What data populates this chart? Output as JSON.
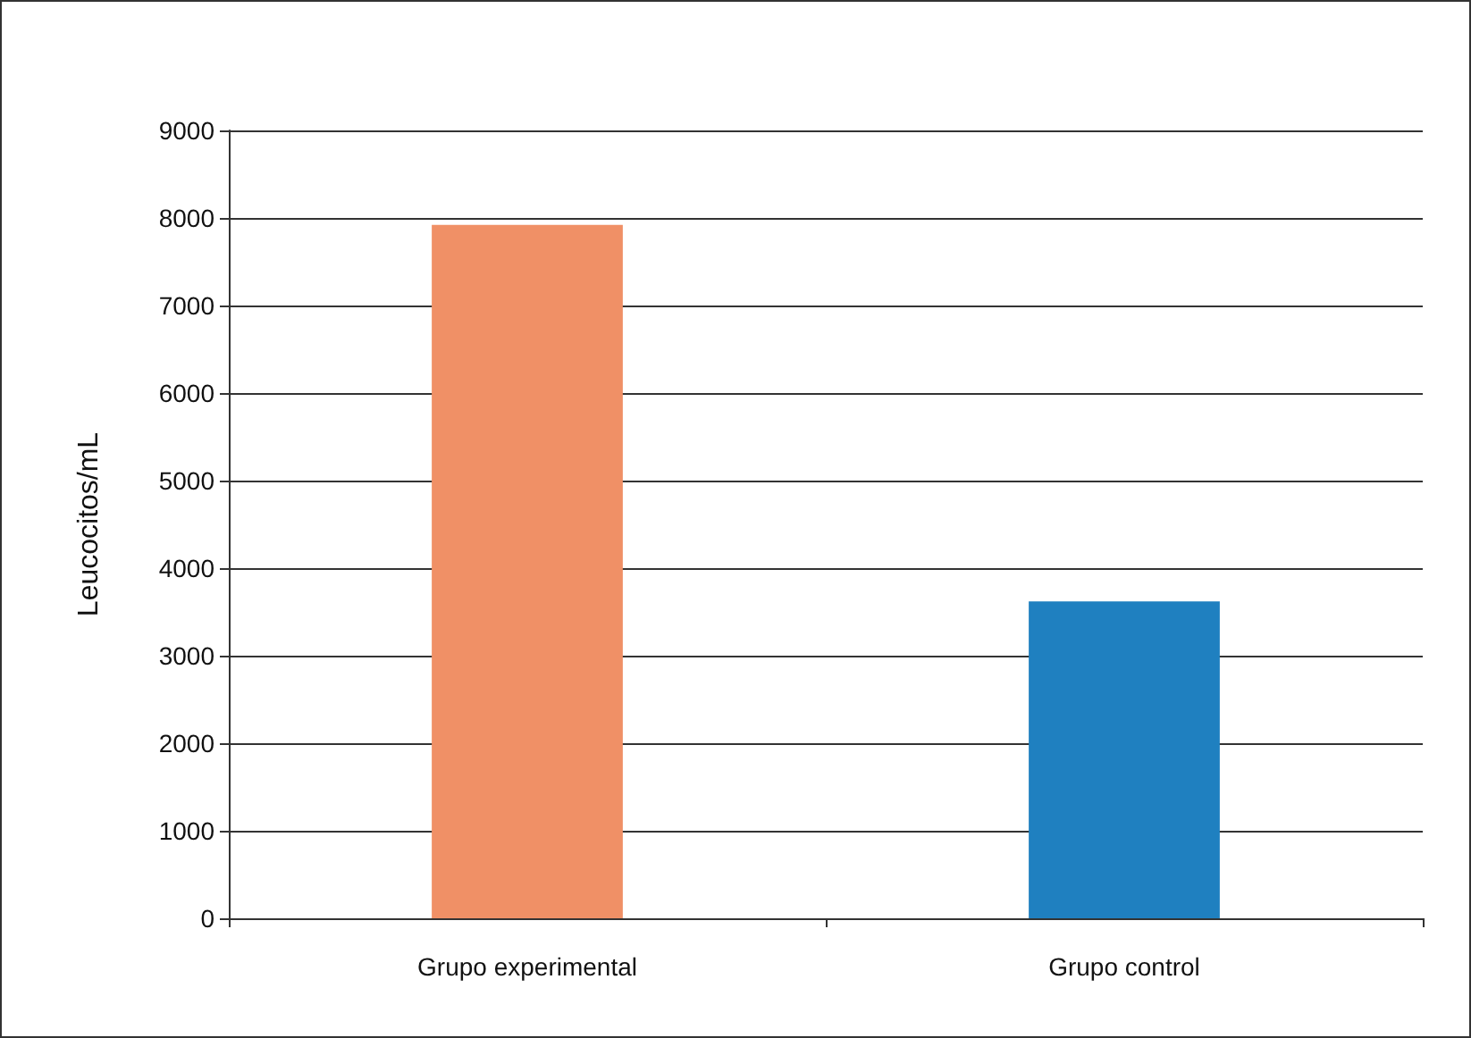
{
  "chart_data": {
    "type": "bar",
    "ylabel": "Leucocitos/mL",
    "categories": [
      "Grupo experimental",
      "Grupo control"
    ],
    "colors": [
      "#f09066",
      "#1f80c0"
    ],
    "values": [
      7920,
      3620
    ],
    "ylim": [
      0,
      9000
    ],
    "yticks": [
      0,
      1000,
      2000,
      3000,
      4000,
      5000,
      6000,
      7000,
      8000,
      9000
    ],
    "grid": "y"
  }
}
